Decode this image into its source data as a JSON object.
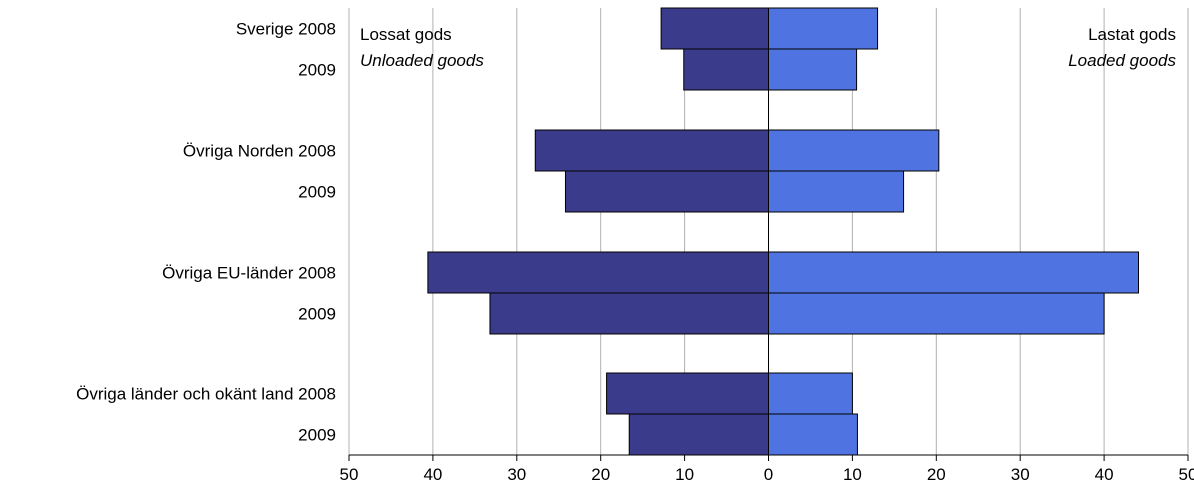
{
  "chart_data": {
    "type": "bar",
    "orientation": "horizontal-diverging",
    "categories": [
      "Sverige 2008",
      "2009",
      "Övriga Norden 2008",
      "2009",
      "Övriga EU-länder 2008",
      "2009",
      "Övriga länder och okänt land 2008",
      "2009"
    ],
    "series": [
      {
        "name": "Lossat gods",
        "side": "left",
        "values": [
          12.8,
          10.1,
          27.8,
          24.2,
          40.6,
          33.2,
          19.3,
          16.6
        ]
      },
      {
        "name": "Lastat gods",
        "side": "right",
        "values": [
          13.0,
          10.5,
          20.3,
          16.1,
          44.1,
          40.0,
          10.0,
          10.6
        ]
      }
    ],
    "xlim": [
      -50,
      50
    ],
    "x_ticks": [
      -50,
      -40,
      -30,
      -20,
      -10,
      0,
      10,
      20,
      30,
      40,
      50
    ],
    "x_tick_labels": [
      "50",
      "40",
      "30",
      "20",
      "10",
      "0",
      "10",
      "20",
      "30",
      "40",
      "50"
    ],
    "grid": true,
    "legend": {
      "left": {
        "line1": "Lossat gods",
        "line2": "Unloaded goods"
      },
      "right": {
        "line1": "Lastat gods",
        "line2": "Loaded goods"
      }
    },
    "colors": {
      "left": "#3b3b8c",
      "right": "#4f73e0",
      "grid": "#b0b0b0",
      "axis": "#000000"
    }
  }
}
